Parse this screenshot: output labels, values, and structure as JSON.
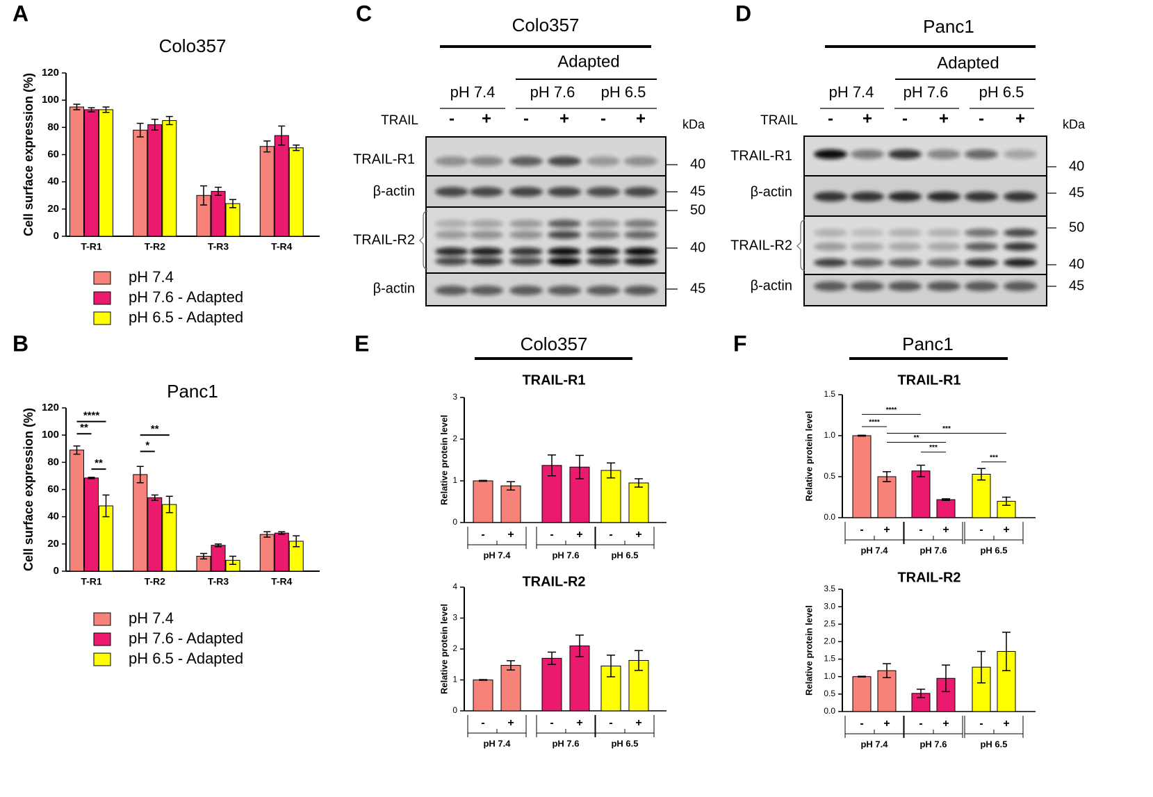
{
  "chart_data": [
    {
      "panel": "A",
      "type": "bar",
      "title": "Colo357",
      "y_label": "Cell surface expression (%)",
      "categories": [
        "T-R1",
        "T-R2",
        "T-R3",
        "T-R4"
      ],
      "series": [
        {
          "name": "pH 7.4",
          "color": "#f7827a",
          "values": [
            95,
            78,
            30,
            66
          ],
          "errors": [
            2,
            5,
            7,
            4
          ]
        },
        {
          "name": "pH 7.6 - Adapted",
          "color": "#ea1a6f",
          "values": [
            93,
            82,
            33,
            74
          ],
          "errors": [
            1.5,
            4,
            3,
            7
          ]
        },
        {
          "name": "pH 6.5 - Adapted",
          "color": "#ffff00",
          "values": [
            93,
            85,
            24,
            65
          ],
          "errors": [
            2,
            3,
            3,
            2
          ]
        }
      ],
      "ylim": [
        0,
        120
      ],
      "yticks": [
        0,
        20,
        40,
        60,
        80,
        100,
        120
      ]
    },
    {
      "panel": "B",
      "type": "bar",
      "title": "Panc1",
      "y_label": "Cell surface expression (%)",
      "categories": [
        "T-R1",
        "T-R2",
        "T-R3",
        "T-R4"
      ],
      "series": [
        {
          "name": "pH 7.4",
          "color": "#f7827a",
          "values": [
            89,
            71,
            11,
            27
          ],
          "errors": [
            3,
            6,
            2,
            2
          ]
        },
        {
          "name": "pH 7.6 - Adapted",
          "color": "#ea1a6f",
          "values": [
            68.5,
            54,
            19,
            28
          ],
          "errors": [
            0.5,
            2,
            1,
            1
          ]
        },
        {
          "name": "pH 6.5 - Adapted",
          "color": "#ffff00",
          "values": [
            48,
            49,
            8,
            22
          ],
          "errors": [
            8,
            6,
            3,
            4
          ]
        }
      ],
      "annotations": [
        {
          "text": "**",
          "category": 0,
          "between": [
            0,
            1
          ],
          "y": 101
        },
        {
          "text": "****",
          "category": 0,
          "between": [
            0,
            2
          ],
          "y": 110
        },
        {
          "text": "**",
          "category": 0,
          "between": [
            1,
            2
          ],
          "y": 75
        },
        {
          "text": "*",
          "category": 1,
          "between": [
            0,
            1
          ],
          "y": 88
        },
        {
          "text": "**",
          "category": 1,
          "between": [
            0,
            2
          ],
          "y": 100
        }
      ],
      "ylim": [
        0,
        120
      ],
      "yticks": [
        0,
        20,
        40,
        60,
        80,
        100,
        120
      ]
    },
    {
      "type": "bar",
      "title": "TRAIL-R1",
      "y_label": "Relative protein level",
      "categories": [
        "-",
        "+",
        "-",
        "+",
        "-",
        "+"
      ],
      "groups": [
        {
          "name": "pH 7.4",
          "color": "#f7827a"
        },
        {
          "name": "pH 7.6",
          "color": "#ea1a6f"
        },
        {
          "name": "pH 6.5",
          "color": "#ffff00"
        }
      ],
      "values": [
        1.0,
        0.88,
        1.37,
        1.33,
        1.25,
        0.95
      ],
      "errors": [
        0.01,
        0.1,
        0.25,
        0.28,
        0.18,
        0.1
      ],
      "ylim": [
        0,
        3
      ],
      "yticks": [
        0,
        1,
        2,
        3
      ]
    },
    {
      "type": "bar",
      "title": "TRAIL-R2",
      "y_label": "Relative protein level",
      "categories": [
        "-",
        "+",
        "-",
        "+",
        "-",
        "+"
      ],
      "groups": [
        {
          "name": "pH 7.4",
          "color": "#f7827a"
        },
        {
          "name": "pH 7.6",
          "color": "#ea1a6f"
        },
        {
          "name": "pH 6.5",
          "color": "#ffff00"
        }
      ],
      "values": [
        1.0,
        1.47,
        1.7,
        2.1,
        1.45,
        1.63
      ],
      "errors": [
        0.01,
        0.15,
        0.2,
        0.35,
        0.35,
        0.32
      ],
      "ylim": [
        0,
        4
      ],
      "yticks": [
        0,
        1,
        2,
        3,
        4
      ]
    },
    {
      "type": "bar",
      "title": "TRAIL-R1",
      "y_label": "Relative protein level",
      "categories": [
        "-",
        "+",
        "-",
        "+",
        "-",
        "+"
      ],
      "groups": [
        {
          "name": "pH 7.4",
          "color": "#f7827a"
        },
        {
          "name": "pH 7.6",
          "color": "#ea1a6f"
        },
        {
          "name": "pH 6.5",
          "color": "#ffff00"
        }
      ],
      "values": [
        1.0,
        0.5,
        0.57,
        0.22,
        0.53,
        0.2
      ],
      "errors": [
        0.005,
        0.06,
        0.07,
        0.01,
        0.07,
        0.05
      ],
      "annotations": [
        {
          "text": "****",
          "between": [
            0,
            1
          ],
          "y": 1.11
        },
        {
          "text": "****",
          "between": [
            0,
            2
          ],
          "y": 1.26
        },
        {
          "text": "***",
          "between": [
            1,
            5
          ],
          "y": 1.03
        },
        {
          "text": "**",
          "between": [
            1,
            3
          ],
          "y": 0.92
        },
        {
          "text": "***",
          "between": [
            2,
            3
          ],
          "y": 0.8
        },
        {
          "text": "***",
          "between": [
            4,
            5
          ],
          "y": 0.68
        }
      ],
      "ylim": [
        0,
        1.5
      ],
      "yticks": [
        {
          "value": 0,
          "label": "0.0"
        },
        0.5,
        {
          "value": 1,
          "label": "1.0"
        },
        1.5
      ]
    },
    {
      "type": "bar",
      "title": "TRAIL-R2",
      "y_label": "Relative protein level",
      "categories": [
        "-",
        "+",
        "-",
        "+",
        "-",
        "+"
      ],
      "groups": [
        {
          "name": "pH 7.4",
          "color": "#f7827a"
        },
        {
          "name": "pH 7.6",
          "color": "#ea1a6f"
        },
        {
          "name": "pH 6.5",
          "color": "#ffff00"
        }
      ],
      "values": [
        1.0,
        1.17,
        0.52,
        0.95,
        1.27,
        1.72
      ],
      "errors": [
        0.01,
        0.2,
        0.12,
        0.38,
        0.45,
        0.55
      ],
      "ylim": [
        0,
        3.5
      ],
      "yticks": [
        {
          "value": 0,
          "label": "0.0"
        },
        0.5,
        {
          "value": 1,
          "label": "1.0"
        },
        1.5,
        {
          "value": 2,
          "label": "2.0"
        },
        2.5,
        {
          "value": 3,
          "label": "3.0"
        },
        3.5
      ]
    }
  ],
  "sections": [
    {
      "letter": "E",
      "title": "Colo357"
    },
    {
      "letter": "F",
      "title": "Panc1"
    }
  ],
  "blots": [
    {
      "letter": "C",
      "title": "Colo357",
      "adapted": "Adapted",
      "groups": [
        "pH 7.4",
        "pH 7.6",
        "pH 6.5"
      ],
      "treatment_label": "TRAIL",
      "treatments": [
        "-",
        "+",
        "-",
        "+",
        "-",
        "+"
      ],
      "kda": "kDa",
      "rows": [
        "TRAIL-R1",
        "β-actin",
        "TRAIL-R2",
        "β-actin"
      ],
      "markers": [
        40,
        45,
        50,
        40,
        45
      ]
    },
    {
      "letter": "D",
      "title": "Panc1",
      "adapted": "Adapted",
      "groups": [
        "pH 7.4",
        "pH 7.6",
        "pH 6.5"
      ],
      "treatment_label": "TRAIL",
      "treatments": [
        "-",
        "+",
        "-",
        "+",
        "-",
        "+"
      ],
      "kda": "kDa",
      "rows": [
        "TRAIL-R1",
        "β-actin",
        "TRAIL-R2",
        "β-actin"
      ],
      "markers": [
        40,
        45,
        50,
        40,
        45
      ]
    }
  ]
}
